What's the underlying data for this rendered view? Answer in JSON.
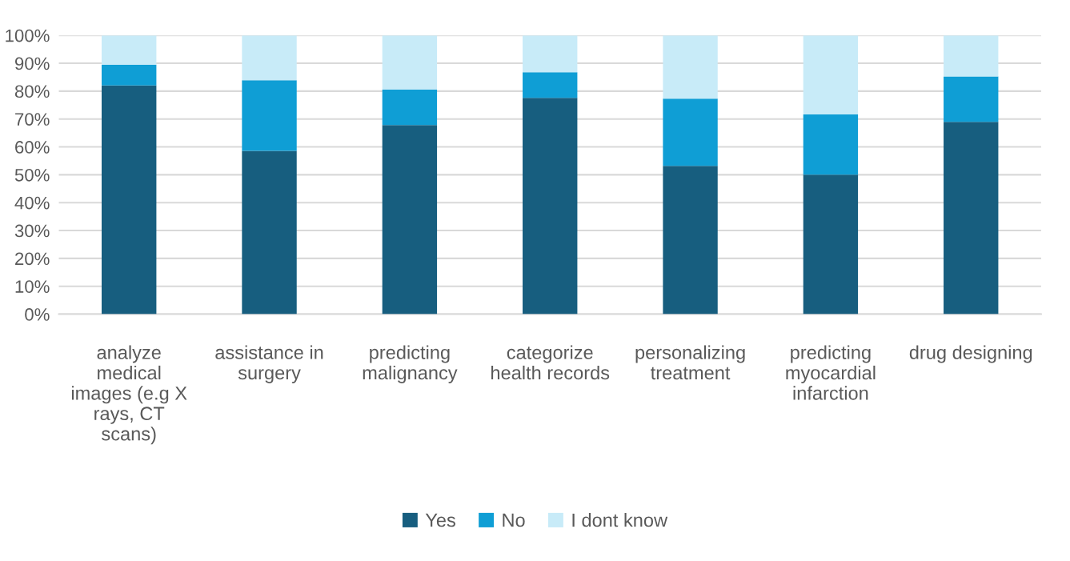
{
  "chart_data": {
    "type": "bar",
    "stacked": true,
    "categories": [
      "analyze\nmedical\nimages (e.g X\nrays, CT\nscans)",
      "assistance in\nsurgery",
      "predicting\nmalignancy",
      "categorize\nhealth records",
      "personalizing\ntreatment",
      "predicting\nmyocardial\ninfarction",
      "drug designing"
    ],
    "series": [
      {
        "name": "Yes",
        "color": "#175e7f",
        "values": [
          82,
          58.6,
          67.8,
          77.6,
          53.2,
          50,
          69
        ]
      },
      {
        "name": "No",
        "color": "#0f9ed5",
        "values": [
          7.5,
          25.3,
          12.7,
          9.2,
          24.1,
          21.6,
          16.3
        ]
      },
      {
        "name": "I dont know",
        "color": "#c8ebf8",
        "values": [
          10.5,
          16.1,
          19.5,
          13.2,
          22.7,
          28.4,
          14.7
        ]
      }
    ],
    "ylim": [
      0,
      100
    ],
    "yticks": [
      {
        "value": 0,
        "label": "0%"
      },
      {
        "value": 10,
        "label": "10%"
      },
      {
        "value": 20,
        "label": "20%"
      },
      {
        "value": 30,
        "label": "30%"
      },
      {
        "value": 40,
        "label": "40%"
      },
      {
        "value": 50,
        "label": "50%"
      },
      {
        "value": 60,
        "label": "60%"
      },
      {
        "value": 70,
        "label": "70%"
      },
      {
        "value": 80,
        "label": "80%"
      },
      {
        "value": 90,
        "label": "90%"
      },
      {
        "value": 100,
        "label": "100%"
      }
    ],
    "grid": "y",
    "legend": "bottom"
  }
}
